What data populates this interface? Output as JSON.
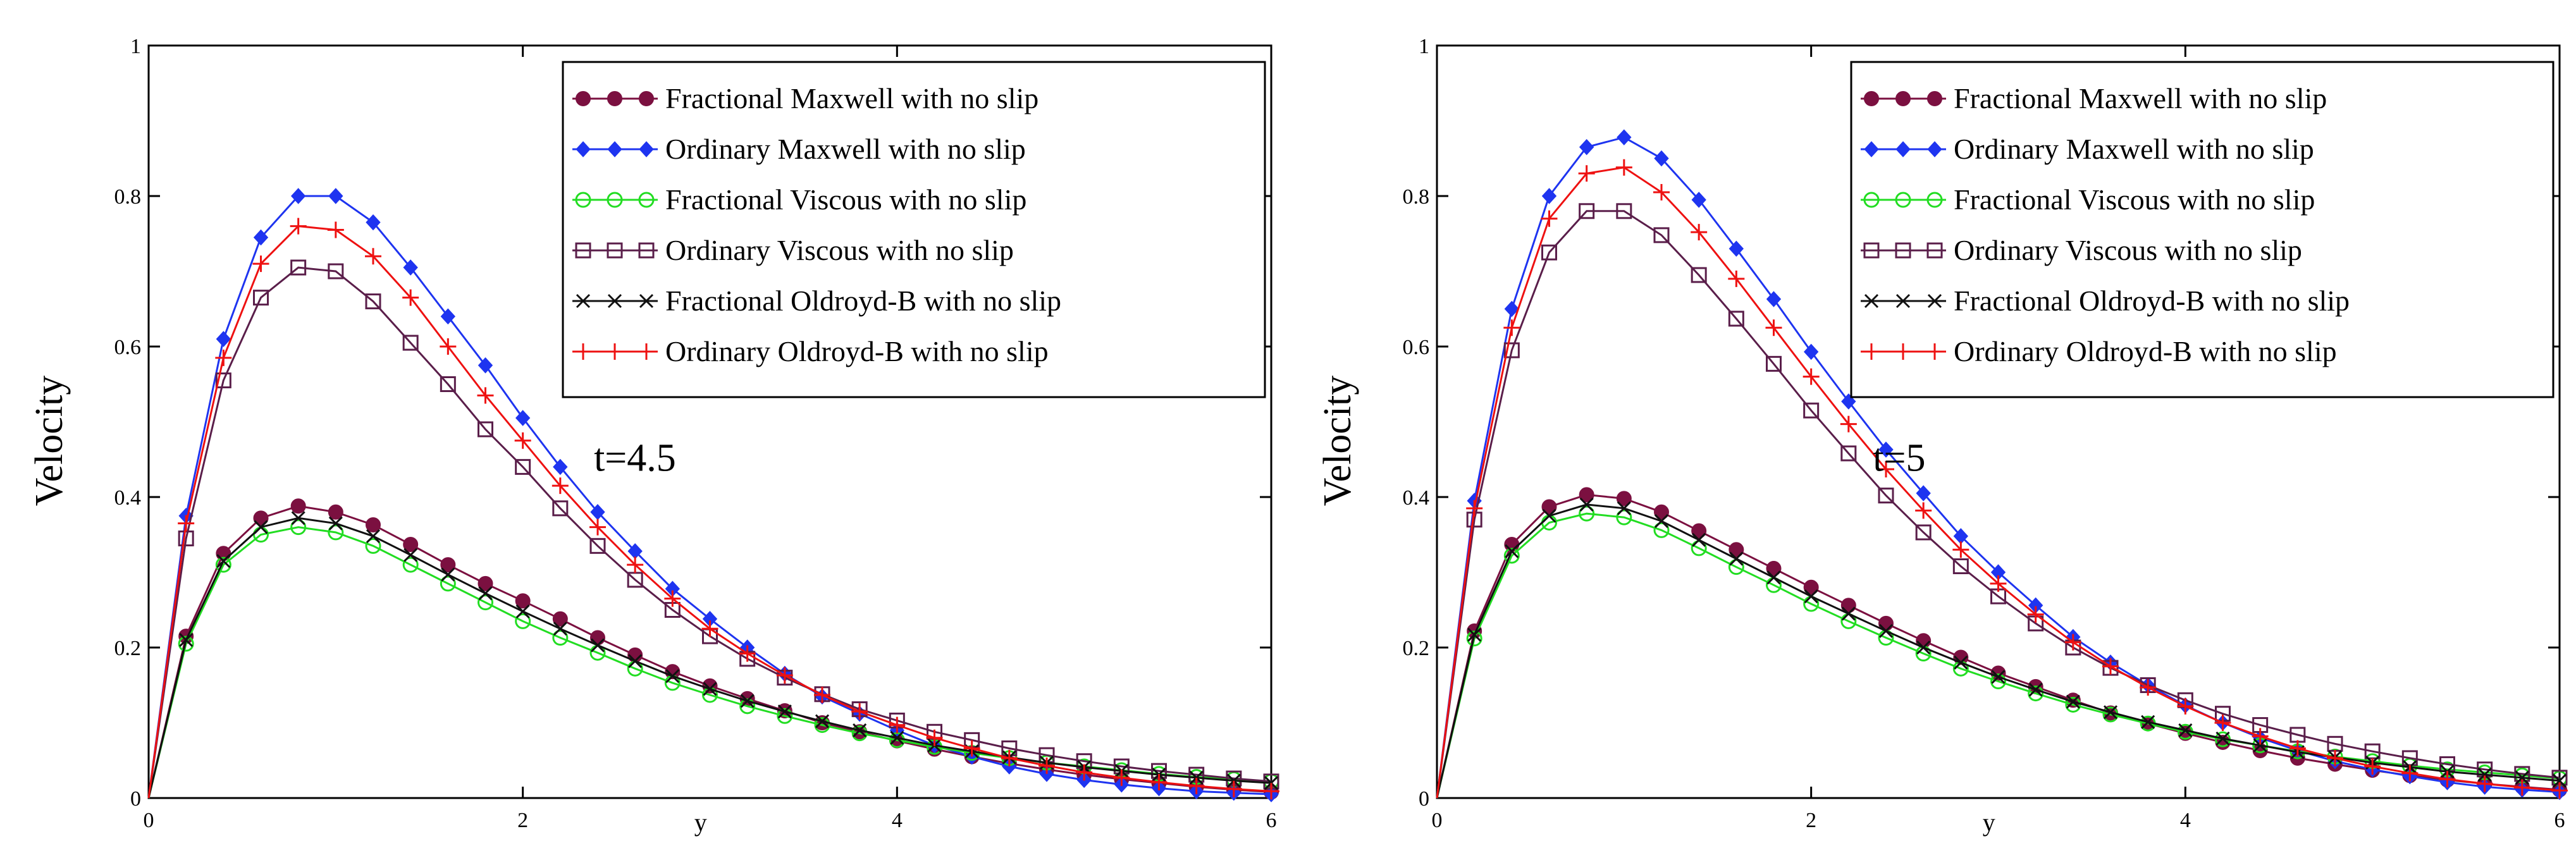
{
  "chart_data": [
    {
      "type": "line",
      "title": "",
      "xlabel": "y",
      "ylabel": "Velocity",
      "annotation": "t=4.5",
      "xlim": [
        0,
        6
      ],
      "ylim": [
        0,
        1
      ],
      "xticks": [
        "0",
        "2",
        "4",
        "6"
      ],
      "yticks": [
        "0",
        "0.2",
        "0.4",
        "0.6",
        "0.8",
        "1"
      ],
      "grid": false,
      "legend_position": "top-right",
      "series": [
        {
          "name": "Fractional Maxwell with no slip",
          "color": "#7B1040",
          "marker": "filled-circle",
          "x": [
            0,
            0.2,
            0.4,
            0.6,
            0.8,
            1.0,
            1.2,
            1.4,
            1.6,
            1.8,
            2.0,
            2.2,
            2.4,
            2.6,
            2.8,
            3.0,
            3.2,
            3.4,
            3.6,
            3.8,
            4.0,
            4.2,
            4.4,
            4.6,
            4.8,
            5.0,
            5.2,
            5.4,
            5.6,
            5.8,
            6.0
          ],
          "y": [
            0,
            0.215,
            0.325,
            0.372,
            0.388,
            0.38,
            0.363,
            0.337,
            0.31,
            0.285,
            0.262,
            0.238,
            0.213,
            0.19,
            0.168,
            0.149,
            0.132,
            0.116,
            0.1,
            0.088,
            0.076,
            0.065,
            0.055,
            0.046,
            0.038,
            0.031,
            0.025,
            0.02,
            0.015,
            0.011,
            0.008
          ]
        },
        {
          "name": "Ordinary Maxwell with no slip",
          "color": "#1E34F0",
          "marker": "filled-diamond",
          "x": [
            0,
            0.2,
            0.4,
            0.6,
            0.8,
            1.0,
            1.2,
            1.4,
            1.6,
            1.8,
            2.0,
            2.2,
            2.4,
            2.6,
            2.8,
            3.0,
            3.2,
            3.4,
            3.6,
            3.8,
            4.0,
            4.2,
            4.4,
            4.6,
            4.8,
            5.0,
            5.2,
            5.4,
            5.6,
            5.8,
            6.0
          ],
          "y": [
            0,
            0.375,
            0.61,
            0.745,
            0.8,
            0.8,
            0.765,
            0.705,
            0.64,
            0.575,
            0.505,
            0.44,
            0.38,
            0.328,
            0.278,
            0.238,
            0.2,
            0.165,
            0.135,
            0.112,
            0.09,
            0.07,
            0.055,
            0.042,
            0.032,
            0.024,
            0.018,
            0.013,
            0.009,
            0.007,
            0.005
          ]
        },
        {
          "name": "Fractional Viscous with no slip",
          "color": "#22DD22",
          "marker": "open-circle",
          "x": [
            0,
            0.2,
            0.4,
            0.6,
            0.8,
            1.0,
            1.2,
            1.4,
            1.6,
            1.8,
            2.0,
            2.2,
            2.4,
            2.6,
            2.8,
            3.0,
            3.2,
            3.4,
            3.6,
            3.8,
            4.0,
            4.2,
            4.4,
            4.6,
            4.8,
            5.0,
            5.2,
            5.4,
            5.6,
            5.8,
            6.0
          ],
          "y": [
            0,
            0.205,
            0.31,
            0.35,
            0.36,
            0.353,
            0.335,
            0.31,
            0.285,
            0.26,
            0.235,
            0.213,
            0.193,
            0.172,
            0.153,
            0.137,
            0.122,
            0.109,
            0.097,
            0.086,
            0.077,
            0.068,
            0.06,
            0.053,
            0.047,
            0.042,
            0.037,
            0.032,
            0.028,
            0.025,
            0.022
          ]
        },
        {
          "name": "Ordinary Viscous with no slip",
          "color": "#5A1E4A",
          "marker": "open-square",
          "x": [
            0,
            0.2,
            0.4,
            0.6,
            0.8,
            1.0,
            1.2,
            1.4,
            1.6,
            1.8,
            2.0,
            2.2,
            2.4,
            2.6,
            2.8,
            3.0,
            3.2,
            3.4,
            3.6,
            3.8,
            4.0,
            4.2,
            4.4,
            4.6,
            4.8,
            5.0,
            5.2,
            5.4,
            5.6,
            5.8,
            6.0
          ],
          "y": [
            0,
            0.345,
            0.555,
            0.665,
            0.705,
            0.7,
            0.66,
            0.605,
            0.55,
            0.49,
            0.44,
            0.385,
            0.335,
            0.29,
            0.25,
            0.215,
            0.185,
            0.16,
            0.138,
            0.118,
            0.103,
            0.088,
            0.077,
            0.066,
            0.057,
            0.049,
            0.042,
            0.036,
            0.031,
            0.026,
            0.022
          ]
        },
        {
          "name": "Fractional Oldroyd-B with no slip",
          "color": "#111111",
          "marker": "x-mark",
          "x": [
            0,
            0.2,
            0.4,
            0.6,
            0.8,
            1.0,
            1.2,
            1.4,
            1.6,
            1.8,
            2.0,
            2.2,
            2.4,
            2.6,
            2.8,
            3.0,
            3.2,
            3.4,
            3.6,
            3.8,
            4.0,
            4.2,
            4.4,
            4.6,
            4.8,
            5.0,
            5.2,
            5.4,
            5.6,
            5.8,
            6.0
          ],
          "y": [
            0,
            0.21,
            0.315,
            0.36,
            0.372,
            0.365,
            0.348,
            0.323,
            0.297,
            0.272,
            0.248,
            0.225,
            0.203,
            0.182,
            0.162,
            0.145,
            0.129,
            0.115,
            0.102,
            0.09,
            0.08,
            0.07,
            0.062,
            0.054,
            0.047,
            0.041,
            0.036,
            0.031,
            0.027,
            0.023,
            0.02
          ]
        },
        {
          "name": "Ordinary Oldroyd-B with no slip",
          "color": "#EE1111",
          "marker": "plus",
          "x": [
            0,
            0.2,
            0.4,
            0.6,
            0.8,
            1.0,
            1.2,
            1.4,
            1.6,
            1.8,
            2.0,
            2.2,
            2.4,
            2.6,
            2.8,
            3.0,
            3.2,
            3.4,
            3.6,
            3.8,
            4.0,
            4.2,
            4.4,
            4.6,
            4.8,
            5.0,
            5.2,
            5.4,
            5.6,
            5.8,
            6.0
          ],
          "y": [
            0,
            0.365,
            0.585,
            0.71,
            0.76,
            0.755,
            0.72,
            0.665,
            0.6,
            0.535,
            0.475,
            0.415,
            0.36,
            0.31,
            0.265,
            0.225,
            0.192,
            0.163,
            0.137,
            0.115,
            0.097,
            0.08,
            0.066,
            0.053,
            0.043,
            0.034,
            0.027,
            0.021,
            0.016,
            0.012,
            0.009
          ]
        }
      ]
    },
    {
      "type": "line",
      "title": "",
      "xlabel": "y",
      "ylabel": "Velocity",
      "annotation": "t=5",
      "xlim": [
        0,
        6
      ],
      "ylim": [
        0,
        1
      ],
      "xticks": [
        "0",
        "2",
        "4",
        "6"
      ],
      "yticks": [
        "0",
        "0.2",
        "0.4",
        "0.6",
        "0.8",
        "1"
      ],
      "grid": false,
      "legend_position": "top-right",
      "series": [
        {
          "name": "Fractional Maxwell with no slip",
          "color": "#7B1040",
          "marker": "filled-circle",
          "x": [
            0,
            0.2,
            0.4,
            0.6,
            0.8,
            1.0,
            1.2,
            1.4,
            1.6,
            1.8,
            2.0,
            2.2,
            2.4,
            2.6,
            2.8,
            3.0,
            3.2,
            3.4,
            3.6,
            3.8,
            4.0,
            4.2,
            4.4,
            4.6,
            4.8,
            5.0,
            5.2,
            5.4,
            5.6,
            5.8,
            6.0
          ],
          "y": [
            0,
            0.222,
            0.337,
            0.387,
            0.403,
            0.398,
            0.38,
            0.355,
            0.33,
            0.305,
            0.28,
            0.256,
            0.232,
            0.209,
            0.187,
            0.166,
            0.148,
            0.13,
            0.113,
            0.099,
            0.086,
            0.074,
            0.063,
            0.053,
            0.045,
            0.037,
            0.03,
            0.024,
            0.019,
            0.015,
            0.011
          ]
        },
        {
          "name": "Ordinary Maxwell with no slip",
          "color": "#1E34F0",
          "marker": "filled-diamond",
          "x": [
            0,
            0.2,
            0.4,
            0.6,
            0.8,
            1.0,
            1.2,
            1.4,
            1.6,
            1.8,
            2.0,
            2.2,
            2.4,
            2.6,
            2.8,
            3.0,
            3.2,
            3.4,
            3.6,
            3.8,
            4.0,
            4.2,
            4.4,
            4.6,
            4.8,
            5.0,
            5.2,
            5.4,
            5.6,
            5.8,
            6.0
          ],
          "y": [
            0,
            0.395,
            0.65,
            0.8,
            0.865,
            0.878,
            0.85,
            0.795,
            0.73,
            0.663,
            0.593,
            0.527,
            0.463,
            0.405,
            0.348,
            0.3,
            0.256,
            0.214,
            0.18,
            0.15,
            0.123,
            0.1,
            0.08,
            0.063,
            0.049,
            0.038,
            0.029,
            0.021,
            0.015,
            0.011,
            0.008
          ]
        },
        {
          "name": "Fractional Viscous with no slip",
          "color": "#22DD22",
          "marker": "open-circle",
          "x": [
            0,
            0.2,
            0.4,
            0.6,
            0.8,
            1.0,
            1.2,
            1.4,
            1.6,
            1.8,
            2.0,
            2.2,
            2.4,
            2.6,
            2.8,
            3.0,
            3.2,
            3.4,
            3.6,
            3.8,
            4.0,
            4.2,
            4.4,
            4.6,
            4.8,
            5.0,
            5.2,
            5.4,
            5.6,
            5.8,
            6.0
          ],
          "y": [
            0,
            0.212,
            0.322,
            0.366,
            0.378,
            0.373,
            0.356,
            0.332,
            0.307,
            0.283,
            0.258,
            0.235,
            0.213,
            0.192,
            0.172,
            0.155,
            0.139,
            0.124,
            0.111,
            0.099,
            0.088,
            0.078,
            0.07,
            0.062,
            0.055,
            0.049,
            0.043,
            0.038,
            0.034,
            0.03,
            0.026
          ]
        },
        {
          "name": "Ordinary Viscous with no slip",
          "color": "#5A1E4A",
          "marker": "open-square",
          "x": [
            0,
            0.2,
            0.4,
            0.6,
            0.8,
            1.0,
            1.2,
            1.4,
            1.6,
            1.8,
            2.0,
            2.2,
            2.4,
            2.6,
            2.8,
            3.0,
            3.2,
            3.4,
            3.6,
            3.8,
            4.0,
            4.2,
            4.4,
            4.6,
            4.8,
            5.0,
            5.2,
            5.4,
            5.6,
            5.8,
            6.0
          ],
          "y": [
            0,
            0.37,
            0.595,
            0.725,
            0.78,
            0.78,
            0.748,
            0.695,
            0.637,
            0.577,
            0.515,
            0.458,
            0.402,
            0.353,
            0.308,
            0.268,
            0.232,
            0.2,
            0.173,
            0.15,
            0.13,
            0.112,
            0.097,
            0.084,
            0.072,
            0.062,
            0.053,
            0.045,
            0.038,
            0.032,
            0.027
          ]
        },
        {
          "name": "Fractional Oldroyd-B with no slip",
          "color": "#111111",
          "marker": "x-mark",
          "x": [
            0,
            0.2,
            0.4,
            0.6,
            0.8,
            1.0,
            1.2,
            1.4,
            1.6,
            1.8,
            2.0,
            2.2,
            2.4,
            2.6,
            2.8,
            3.0,
            3.2,
            3.4,
            3.6,
            3.8,
            4.0,
            4.2,
            4.4,
            4.6,
            4.8,
            5.0,
            5.2,
            5.4,
            5.6,
            5.8,
            6.0
          ],
          "y": [
            0,
            0.217,
            0.328,
            0.375,
            0.39,
            0.385,
            0.368,
            0.343,
            0.318,
            0.293,
            0.268,
            0.245,
            0.222,
            0.2,
            0.18,
            0.161,
            0.144,
            0.128,
            0.114,
            0.101,
            0.09,
            0.079,
            0.07,
            0.061,
            0.054,
            0.047,
            0.041,
            0.035,
            0.031,
            0.027,
            0.023
          ]
        },
        {
          "name": "Ordinary Oldroyd-B with no slip",
          "color": "#EE1111",
          "marker": "plus",
          "x": [
            0,
            0.2,
            0.4,
            0.6,
            0.8,
            1.0,
            1.2,
            1.4,
            1.6,
            1.8,
            2.0,
            2.2,
            2.4,
            2.6,
            2.8,
            3.0,
            3.2,
            3.4,
            3.6,
            3.8,
            4.0,
            4.2,
            4.4,
            4.6,
            4.8,
            5.0,
            5.2,
            5.4,
            5.6,
            5.8,
            6.0
          ],
          "y": [
            0,
            0.385,
            0.625,
            0.77,
            0.83,
            0.838,
            0.805,
            0.752,
            0.69,
            0.625,
            0.56,
            0.497,
            0.437,
            0.382,
            0.33,
            0.285,
            0.244,
            0.207,
            0.175,
            0.147,
            0.122,
            0.1,
            0.082,
            0.066,
            0.053,
            0.042,
            0.033,
            0.025,
            0.019,
            0.014,
            0.01
          ]
        }
      ]
    }
  ]
}
